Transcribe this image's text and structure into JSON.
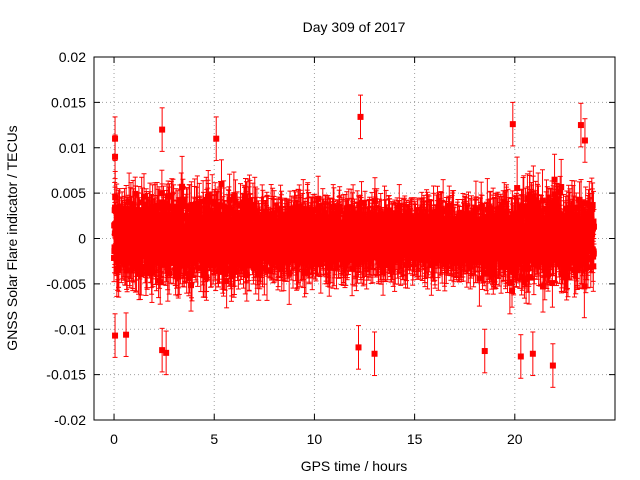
{
  "chart_data": {
    "type": "scatter",
    "title": "Day 309 of 2017",
    "xlabel": "GPS time / hours",
    "ylabel": "GNSS Solar Flare indicator / TECUs",
    "xlim": [
      -1,
      25
    ],
    "ylim": [
      -0.02,
      0.02
    ],
    "x_ticks": [
      0,
      5,
      10,
      15,
      20
    ],
    "x_tick_labels": [
      "0",
      "5",
      "10",
      "15",
      "20"
    ],
    "y_ticks": [
      -0.02,
      -0.015,
      -0.01,
      -0.005,
      0,
      0.005,
      0.01,
      0.015,
      0.02
    ],
    "y_tick_labels": [
      "-0.02",
      "-0.015",
      "-0.01",
      "-0.005",
      "0",
      "0.005",
      "0.01",
      "0.015",
      "0.02"
    ],
    "grid": true,
    "legend": false,
    "series": [
      {
        "color": "#ff0000",
        "marker": "square",
        "error_bars": true,
        "x_start": 0.0,
        "x_end": 23.95,
        "noise_amplitude_profile": [
          [
            0.0,
            0.0055
          ],
          [
            3.0,
            0.0065
          ],
          [
            6.0,
            0.006
          ],
          [
            8.0,
            0.0045
          ],
          [
            12.0,
            0.0045
          ],
          [
            15.0,
            0.0035
          ],
          [
            18.0,
            0.0042
          ],
          [
            20.0,
            0.0065
          ],
          [
            24.0,
            0.006
          ]
        ],
        "error_bar_halfwidth": 0.003,
        "highlighted_points": [
          {
            "x": 0.05,
            "y": 0.011
          },
          {
            "x": 0.05,
            "y": 0.009
          },
          {
            "x": 0.05,
            "y": -0.0107
          },
          {
            "x": 0.6,
            "y": -0.0106
          },
          {
            "x": 2.4,
            "y": 0.012
          },
          {
            "x": 2.4,
            "y": -0.0123
          },
          {
            "x": 2.6,
            "y": -0.0126
          },
          {
            "x": 5.1,
            "y": 0.011
          },
          {
            "x": 12.3,
            "y": 0.0134
          },
          {
            "x": 12.2,
            "y": -0.012
          },
          {
            "x": 13.0,
            "y": -0.0127
          },
          {
            "x": 19.9,
            "y": 0.0126
          },
          {
            "x": 20.3,
            "y": -0.013
          },
          {
            "x": 20.9,
            "y": -0.0127
          },
          {
            "x": 21.9,
            "y": -0.014
          },
          {
            "x": 23.3,
            "y": 0.0125
          },
          {
            "x": 23.5,
            "y": 0.0108
          },
          {
            "x": 18.5,
            "y": -0.0124
          }
        ]
      }
    ]
  }
}
